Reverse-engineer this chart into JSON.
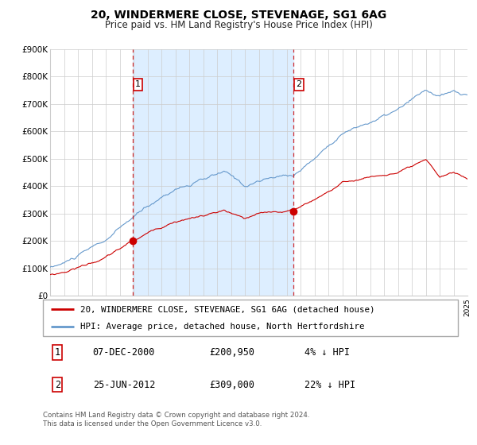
{
  "title": "20, WINDERMERE CLOSE, STEVENAGE, SG1 6AG",
  "subtitle": "Price paid vs. HM Land Registry's House Price Index (HPI)",
  "legend_label_red": "20, WINDERMERE CLOSE, STEVENAGE, SG1 6AG (detached house)",
  "legend_label_blue": "HPI: Average price, detached house, North Hertfordshire",
  "sale1_date_label": "07-DEC-2000",
  "sale1_price": 200950,
  "sale1_note": "4% ↓ HPI",
  "sale1_year": 2000.92,
  "sale2_date_label": "25-JUN-2012",
  "sale2_price": 309000,
  "sale2_note": "22% ↓ HPI",
  "sale2_year": 2012.48,
  "xmin": 1995,
  "xmax": 2025,
  "ymin": 0,
  "ymax": 900000,
  "yticks": [
    0,
    100000,
    200000,
    300000,
    400000,
    500000,
    600000,
    700000,
    800000,
    900000
  ],
  "ytick_labels": [
    "£0",
    "£100K",
    "£200K",
    "£300K",
    "£400K",
    "£500K",
    "£600K",
    "£700K",
    "£800K",
    "£900K"
  ],
  "red_color": "#cc0000",
  "blue_color": "#6699cc",
  "shaded_region_color": "#ddeeff",
  "grid_color": "#cccccc",
  "footnote1": "Contains HM Land Registry data © Crown copyright and database right 2024.",
  "footnote2": "This data is licensed under the Open Government Licence v3.0."
}
